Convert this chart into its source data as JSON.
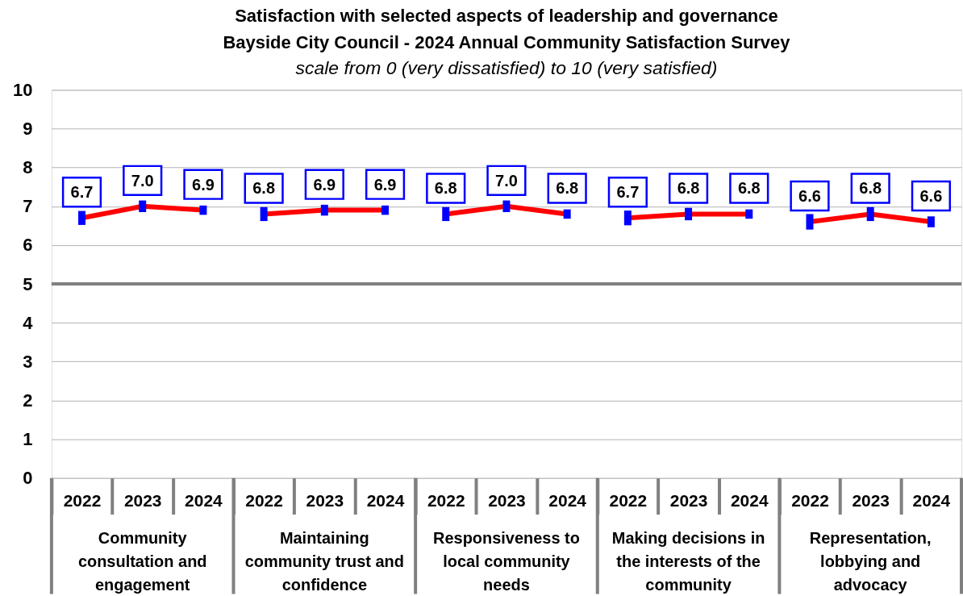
{
  "chart_data": {
    "type": "line",
    "title": "Satisfaction with selected aspects of leadership and governance\nBayside City Council - 2024 Annual Community Satisfaction Survey",
    "subtitle": "scale from 0 (very dissatisfied) to 10 (very satisfied)",
    "categories": [
      "2022",
      "2023",
      "2024",
      "2022",
      "2023",
      "2024",
      "2022",
      "2023",
      "2024",
      "2022",
      "2023",
      "2024",
      "2022",
      "2023",
      "2024"
    ],
    "series": [
      {
        "color": "#ff0000",
        "values": [
          6.7,
          7.0,
          6.9,
          null,
          null,
          null,
          null,
          null,
          null,
          null,
          null,
          null,
          null,
          null,
          null
        ],
        "value_labels": [
          "6.7",
          "7.0",
          "6.9",
          null,
          null,
          null,
          null,
          null,
          null,
          null,
          null,
          null,
          null,
          null,
          null
        ],
        "errors": [
          0.18,
          0.15,
          0.12,
          null,
          null,
          null,
          null,
          null,
          null,
          null,
          null,
          null,
          null,
          null,
          null
        ]
      },
      {
        "color": "#ff0000",
        "values": [
          null,
          null,
          null,
          6.8,
          6.9,
          6.9,
          null,
          null,
          null,
          null,
          null,
          null,
          null,
          null,
          null
        ],
        "value_labels": [
          null,
          null,
          null,
          "6.8",
          "6.9",
          "6.9",
          null,
          null,
          null,
          null,
          null,
          null,
          null,
          null,
          null
        ],
        "errors": [
          null,
          null,
          null,
          0.18,
          0.14,
          0.12,
          null,
          null,
          null,
          null,
          null,
          null,
          null,
          null,
          null
        ]
      },
      {
        "color": "#ff0000",
        "values": [
          null,
          null,
          null,
          null,
          null,
          null,
          6.8,
          7.0,
          6.8,
          null,
          null,
          null,
          null,
          null,
          null
        ],
        "value_labels": [
          null,
          null,
          null,
          null,
          null,
          null,
          "6.8",
          "7.0",
          "6.8",
          null,
          null,
          null,
          null,
          null,
          null
        ],
        "errors": [
          null,
          null,
          null,
          null,
          null,
          null,
          0.18,
          0.15,
          0.12,
          null,
          null,
          null,
          null,
          null,
          null
        ]
      },
      {
        "color": "#ff0000",
        "values": [
          null,
          null,
          null,
          null,
          null,
          null,
          null,
          null,
          null,
          6.7,
          6.8,
          6.8,
          null,
          null,
          null
        ],
        "value_labels": [
          null,
          null,
          null,
          null,
          null,
          null,
          null,
          null,
          null,
          "6.7",
          "6.8",
          "6.8",
          null,
          null,
          null
        ],
        "errors": [
          null,
          null,
          null,
          null,
          null,
          null,
          null,
          null,
          null,
          0.19,
          0.16,
          0.12,
          null,
          null,
          null
        ]
      },
      {
        "color": "#ff0000",
        "values": [
          null,
          null,
          null,
          null,
          null,
          null,
          null,
          null,
          null,
          null,
          null,
          null,
          6.6,
          6.8,
          6.6
        ],
        "value_labels": [
          null,
          null,
          null,
          null,
          null,
          null,
          null,
          null,
          null,
          null,
          null,
          null,
          "6.6",
          "6.8",
          "6.6"
        ],
        "errors": [
          null,
          null,
          null,
          null,
          null,
          null,
          null,
          null,
          null,
          null,
          null,
          null,
          0.2,
          0.18,
          0.14
        ]
      }
    ],
    "annotations": [
      "Community consultation and engagement",
      "Maintaining community trust and confidence",
      "Responsiveness to local community needs",
      "Making decisions in the interests of the community",
      "Representation, lobbying and advocacy"
    ],
    "ylim": [
      0,
      10
    ],
    "yticks": [
      0,
      1,
      2,
      3,
      4,
      5,
      6,
      7,
      8,
      9,
      10
    ],
    "grid": "y",
    "ref_lines": [
      {
        "axis": "y",
        "value": 5,
        "color": "#808080"
      }
    ]
  }
}
